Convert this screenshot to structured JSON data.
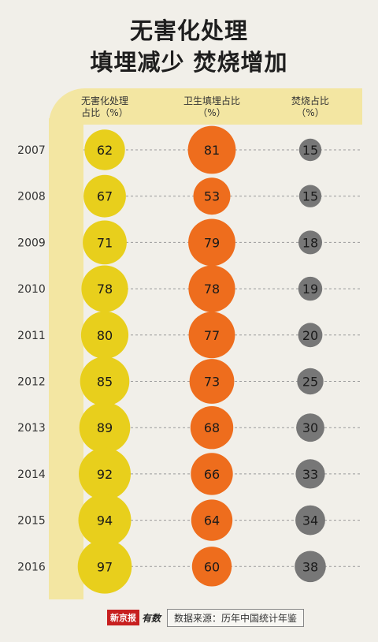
{
  "title_line1": "无害化处理",
  "title_line2": "填埋减少  焚烧增加",
  "chart_data": {
    "type": "table",
    "columns": [
      {
        "label_line1": "无害化处理",
        "label_line2": "占比（%）",
        "color": "#e8cf1c"
      },
      {
        "label_line1": "卫生填埋占比",
        "label_line2": "（%）",
        "color": "#ee6d1d"
      },
      {
        "label_line1": "焚烧占比",
        "label_line2": "（%）",
        "color": "#777777"
      }
    ],
    "years": [
      "2007",
      "2008",
      "2009",
      "2010",
      "2011",
      "2012",
      "2013",
      "2014",
      "2015",
      "2016"
    ],
    "series": [
      {
        "name": "无害化处理占比（%）",
        "values": [
          62,
          67,
          71,
          78,
          80,
          85,
          89,
          92,
          94,
          97
        ]
      },
      {
        "name": "卫生填埋占比（%）",
        "values": [
          81,
          53,
          79,
          78,
          77,
          73,
          68,
          66,
          64,
          60
        ]
      },
      {
        "name": "焚烧占比（%）",
        "values": [
          15,
          15,
          18,
          19,
          20,
          25,
          30,
          33,
          34,
          38
        ]
      }
    ]
  },
  "footer": {
    "logo": "新京报",
    "logo2": "有数",
    "source": "数据来源：历年中国统计年鉴"
  }
}
